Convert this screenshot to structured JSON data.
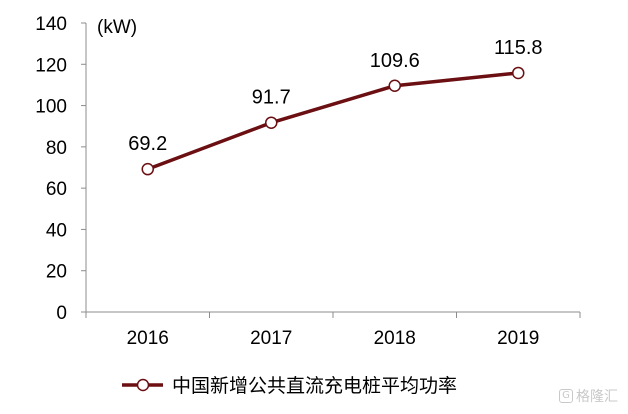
{
  "chart_data": {
    "type": "line",
    "unit": "(kW)",
    "categories": [
      "2016",
      "2017",
      "2018",
      "2019"
    ],
    "series": [
      {
        "name": "中国新增公共直流充电桩平均功率",
        "values": [
          69.2,
          91.7,
          109.6,
          115.8
        ]
      }
    ],
    "data_labels": [
      "69.2",
      "91.7",
      "109.6",
      "115.8"
    ],
    "ylim": [
      0,
      140
    ],
    "yticks": [
      "0",
      "20",
      "40",
      "60",
      "80",
      "100",
      "120",
      "140"
    ],
    "legend_position": "bottom",
    "grid": false,
    "line_color": "#6b0f12"
  },
  "watermark": {
    "logo": "G",
    "text": "格隆汇"
  }
}
